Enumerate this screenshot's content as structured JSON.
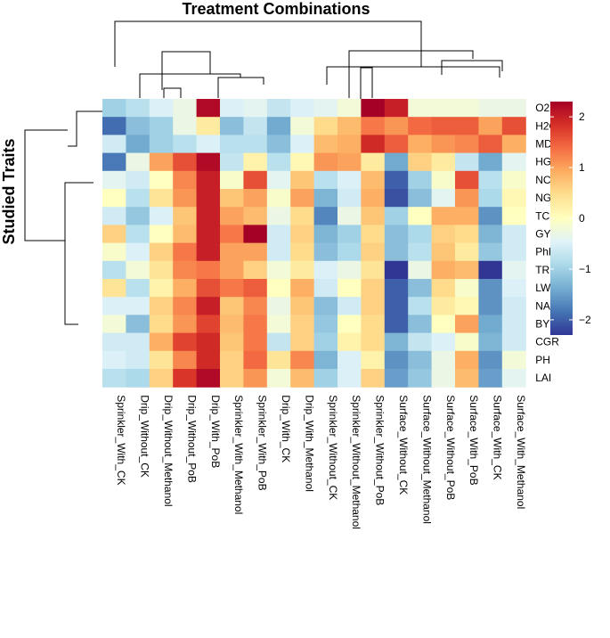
{
  "chart_data": {
    "type": "heatmap",
    "title": "Treatment Combinations",
    "ylabel": "Studied Traits",
    "columns": [
      "Sprinkler_With_CK",
      "Drip_Without_CK",
      "Drip_Without_Methanol",
      "Drip_Without_PoB",
      "Drip_With_PoB",
      "Sprinkler_With_Methanol",
      "Sprinkler_With_PoB",
      "Drip_With_CK",
      "Drip_With_Methanol",
      "Sprinkler_Without_CK",
      "Sprinkler_Without_Methanol",
      "Sprinkler_Without_PoB",
      "Surface_Without_CK",
      "Surface_Without_Methanol",
      "Surface_Without_PoB",
      "Surface_With_PoB",
      "Surface_With_CK",
      "Surface_With_Methanol"
    ],
    "rows": [
      "O2",
      "H2O2",
      "MDA",
      "HGW",
      "NCM",
      "NGL",
      "TCh",
      "GY",
      "PhR",
      "TR",
      "LWC",
      "NAR",
      "BY",
      "CGR",
      "PH",
      "LAI"
    ],
    "values": [
      [
        -1.0,
        -0.8,
        -0.5,
        -0.3,
        2.2,
        -0.5,
        -0.4,
        -0.7,
        -0.5,
        -0.4,
        -0.2,
        2.3,
        2.0,
        -0.2,
        -0.2,
        -0.2,
        -0.3,
        -0.3
      ],
      [
        -1.9,
        -1.2,
        -1.0,
        -0.3,
        0.3,
        -1.2,
        -0.7,
        -1.4,
        -0.2,
        0.5,
        0.8,
        1.3,
        1.1,
        1.4,
        1.5,
        1.5,
        1.0,
        1.6
      ],
      [
        -0.6,
        -1.4,
        -1.0,
        -0.8,
        -0.5,
        -0.8,
        -0.8,
        -1.2,
        -0.5,
        0.8,
        0.9,
        1.9,
        1.5,
        0.9,
        1.1,
        1.2,
        1.5,
        0.9
      ],
      [
        -1.8,
        -0.3,
        1.0,
        1.6,
        2.2,
        -0.7,
        0.2,
        -0.8,
        0.1,
        1.1,
        1.0,
        0.3,
        -1.4,
        0.6,
        0.3,
        -0.7,
        -1.4,
        -0.4
      ],
      [
        -0.4,
        -0.6,
        0.0,
        1.2,
        2.0,
        -0.1,
        1.6,
        -0.4,
        0.7,
        -0.8,
        -0.5,
        0.8,
        -2.0,
        -1.0,
        -0.1,
        1.6,
        -0.8,
        -0.1
      ],
      [
        0.0,
        -0.8,
        0.4,
        1.1,
        2.0,
        0.7,
        1.0,
        -0.1,
        1.0,
        -1.3,
        -0.6,
        0.9,
        -2.1,
        -1.2,
        -0.4,
        1.1,
        -0.9,
        0.1
      ],
      [
        -0.6,
        -1.1,
        -0.5,
        0.7,
        2.0,
        1.0,
        0.8,
        -0.3,
        0.5,
        -1.7,
        -0.3,
        0.7,
        -1.0,
        0.0,
        0.9,
        0.9,
        -1.6,
        0.0
      ],
      [
        0.6,
        -0.8,
        0.0,
        0.8,
        2.0,
        1.3,
        2.3,
        -0.6,
        0.6,
        -1.3,
        -1.0,
        0.5,
        -1.2,
        -0.9,
        0.6,
        0.5,
        -1.3,
        -0.6
      ],
      [
        -0.1,
        -0.5,
        0.6,
        1.3,
        2.0,
        1.0,
        1.0,
        -0.6,
        0.5,
        -1.2,
        -0.9,
        0.6,
        -1.2,
        -0.8,
        0.7,
        0.3,
        -1.1,
        -0.6
      ],
      [
        -0.8,
        -0.2,
        0.4,
        1.2,
        1.3,
        1.0,
        0.6,
        -0.2,
        0.3,
        -0.5,
        -0.3,
        0.4,
        -2.3,
        -0.3,
        0.9,
        0.8,
        -2.3,
        -0.4
      ],
      [
        0.4,
        -0.8,
        0.2,
        0.9,
        1.6,
        1.3,
        1.5,
        0.0,
        0.9,
        -0.6,
        0.0,
        0.6,
        -2.0,
        -1.2,
        0.5,
        -0.1,
        -1.6,
        -0.5
      ],
      [
        -0.5,
        -0.5,
        0.6,
        1.2,
        2.0,
        0.7,
        1.2,
        -0.3,
        0.7,
        -1.2,
        -0.6,
        0.6,
        -2.0,
        -0.8,
        0.3,
        0.1,
        -1.6,
        -0.6
      ],
      [
        -0.2,
        -1.2,
        0.5,
        1.1,
        1.7,
        0.8,
        1.3,
        -0.2,
        0.6,
        -1.1,
        0.0,
        0.5,
        -2.0,
        -1.2,
        0.0,
        1.0,
        -1.4,
        -0.6
      ],
      [
        -0.6,
        -0.6,
        0.9,
        1.7,
        1.9,
        0.7,
        1.3,
        -0.7,
        0.6,
        -1.0,
        0.2,
        0.5,
        -1.3,
        -0.7,
        -0.5,
        -0.1,
        -1.3,
        -0.6
      ],
      [
        -0.5,
        -0.6,
        0.4,
        1.2,
        1.9,
        0.6,
        1.4,
        0.4,
        1.2,
        -1.3,
        -0.5,
        0.2,
        -1.6,
        -1.2,
        -0.3,
        0.9,
        -1.6,
        -0.2
      ],
      [
        -0.8,
        -0.9,
        0.6,
        1.8,
        2.2,
        0.6,
        1.1,
        -0.2,
        0.8,
        -1.0,
        -0.5,
        0.6,
        -1.5,
        -1.1,
        -0.3,
        0.8,
        -1.5,
        -0.4
      ]
    ],
    "legend": {
      "ticks": [
        2,
        1,
        0,
        -1,
        -2
      ],
      "range": [
        -2.3,
        2.3
      ],
      "colors": [
        "#313695",
        "#4575b4",
        "#74add1",
        "#abd9e9",
        "#e0f3f8",
        "#ffffbf",
        "#fee090",
        "#fdae61",
        "#f46d43",
        "#d73027",
        "#a50026"
      ]
    }
  }
}
